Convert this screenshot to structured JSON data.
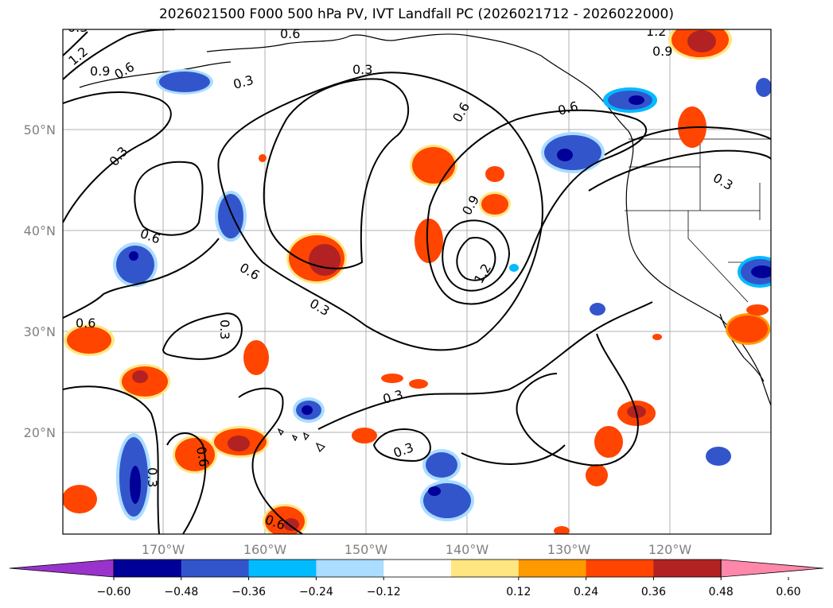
{
  "title": "2026021500 F000 500 hPa PV, IVT Landfall PC (2026021712 - 2026022000)",
  "lon_ticks": [
    "170°W",
    "160°W",
    "150°W",
    "140°W",
    "130°W",
    "120°W"
  ],
  "lat_ticks": [
    "50°N",
    "40°N",
    "30°N",
    "20°N"
  ],
  "contour_labels": [
    "1.2",
    "0.9",
    "0.6",
    "0.3",
    "0.6",
    "0.3",
    "0.3",
    "0.6",
    "0.6",
    "0.3",
    "0.6",
    "0.3",
    "0.6",
    "0.6",
    "0.9",
    "1.2",
    "0.9",
    "0.3",
    "0.3",
    "0.3",
    "0.6",
    "0.3",
    "0.6",
    "0.3",
    "1.2"
  ],
  "colorbar": {
    "tick_labels": [
      "−0.60",
      "−0.48",
      "−0.36",
      "−0.24",
      "−0.12",
      "0.12",
      "0.24",
      "0.36",
      "0.48",
      "0.60"
    ],
    "colors": [
      "#9933cc",
      "#000099",
      "#3355cc",
      "#00bbff",
      "#aaddff",
      "#ffffff",
      "#ffe680",
      "#ff9900",
      "#ff4500",
      "#b22222",
      "#ff88aa"
    ]
  },
  "fill_colors": {
    "neg_outer": "#aaddff",
    "neg_mid1": "#00bbff",
    "neg_mid2": "#3355cc",
    "neg_core": "#000099",
    "pos_outer": "#ffe680",
    "pos_mid1": "#ff9900",
    "pos_mid2": "#ff4500",
    "pos_core": "#b22222"
  }
}
